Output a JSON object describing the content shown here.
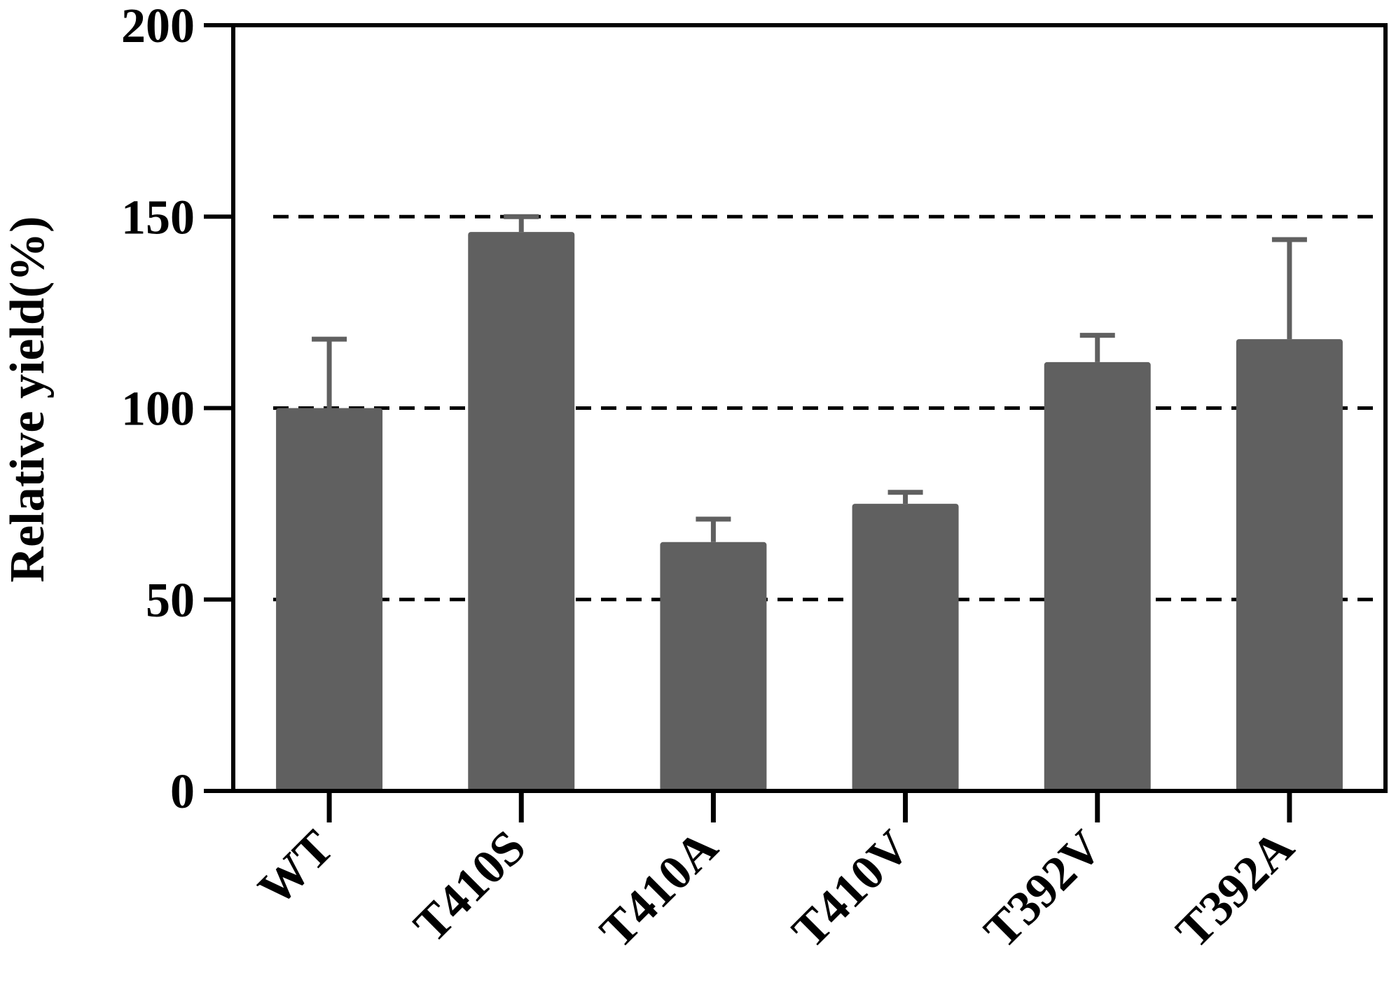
{
  "chart_data": {
    "type": "bar",
    "title": "",
    "xlabel": "",
    "ylabel": "Relative yield(%)",
    "ylim": [
      0,
      200
    ],
    "yticks": [
      0,
      50,
      100,
      150,
      200
    ],
    "ytick_labels": [
      "0",
      "50",
      "100",
      "150",
      "200"
    ],
    "gridlines": [
      50,
      100,
      150
    ],
    "grid_style": "dashed",
    "categories": [
      "WT",
      "T410S",
      "T410A",
      "T410V",
      "T392V",
      "T392A"
    ],
    "values": [
      100,
      146,
      65,
      75,
      112,
      118
    ],
    "error_upper": [
      118,
      150,
      71,
      78,
      119,
      144
    ],
    "bar_color": "#606060",
    "error_color": "#606060",
    "axis_color": "#000000"
  }
}
